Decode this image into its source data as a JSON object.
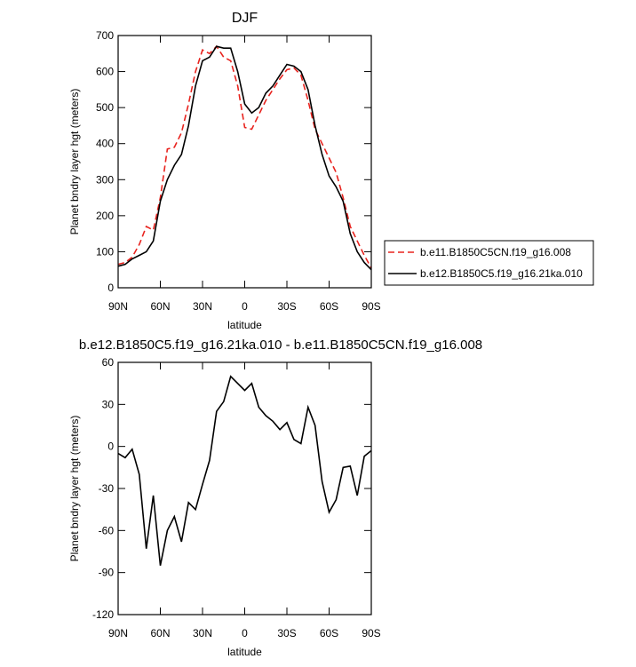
{
  "chart_data": [
    {
      "type": "line",
      "title": "DJF",
      "xlabel": "latitude",
      "ylabel": "Planet bndry layer hgt (meters)",
      "x": [
        90,
        85,
        80,
        75,
        70,
        65,
        60,
        55,
        50,
        45,
        40,
        35,
        30,
        25,
        20,
        15,
        10,
        5,
        0,
        -5,
        -10,
        -15,
        -20,
        -25,
        -30,
        -35,
        -40,
        -45,
        -50,
        -55,
        -60,
        -65,
        -70,
        -75,
        -80,
        -85,
        -90
      ],
      "series": [
        {
          "name": "b.e11.B1850C5CN.f19_g16.008",
          "color": "#e8231e",
          "dashed": true,
          "values": [
            65,
            70,
            85,
            120,
            170,
            160,
            250,
            385,
            390,
            430,
            510,
            600,
            660,
            650,
            670,
            640,
            630,
            560,
            445,
            440,
            480,
            520,
            550,
            580,
            605,
            610,
            590,
            520,
            440,
            400,
            360,
            320,
            250,
            170,
            130,
            90,
            55
          ]
        },
        {
          "name": "b.e12.B1850C5.f19_g16.21ka.010",
          "color": "#000000",
          "dashed": false,
          "values": [
            60,
            65,
            80,
            90,
            100,
            130,
            240,
            300,
            340,
            370,
            450,
            560,
            630,
            640,
            670,
            665,
            665,
            600,
            510,
            485,
            500,
            540,
            560,
            590,
            620,
            615,
            600,
            550,
            450,
            370,
            310,
            280,
            240,
            150,
            100,
            70,
            50
          ]
        }
      ],
      "xlim": [
        90,
        -90
      ],
      "xticks": [
        {
          "value": 90,
          "label": "90N"
        },
        {
          "value": 60,
          "label": "60N"
        },
        {
          "value": 30,
          "label": "30N"
        },
        0,
        {
          "value": -30,
          "label": "30S"
        },
        {
          "value": -60,
          "label": "60S"
        },
        {
          "value": -90,
          "label": "90S"
        }
      ],
      "ylim": [
        0,
        700
      ],
      "yticks": [
        0,
        100,
        200,
        300,
        400,
        500,
        600,
        700
      ],
      "legend": "outside-right"
    },
    {
      "type": "line",
      "title": "b.e12.B1850C5.f19_g16.21ka.010 - b.e11.B1850C5CN.f19_g16.008",
      "xlabel": "latitude",
      "ylabel": "Planet bndry layer hgt (meters)",
      "x": [
        90,
        85,
        80,
        75,
        70,
        65,
        60,
        55,
        50,
        45,
        40,
        35,
        30,
        25,
        20,
        15,
        10,
        5,
        0,
        -5,
        -10,
        -15,
        -20,
        -25,
        -30,
        -35,
        -40,
        -45,
        -50,
        -55,
        -60,
        -65,
        -70,
        -75,
        -80,
        -85,
        -90
      ],
      "color": "#000000",
      "values": [
        -5,
        -8,
        -2,
        -20,
        -73,
        -35,
        -85,
        -60,
        -50,
        -68,
        -40,
        -45,
        -27,
        -10,
        25,
        32,
        50,
        45,
        40,
        45,
        28,
        22,
        18,
        12,
        17,
        5,
        2,
        28,
        15,
        -25,
        -47,
        -38,
        -15,
        -14,
        -35,
        -7,
        -3
      ],
      "xlim": [
        90,
        -90
      ],
      "xticks": [
        {
          "value": 90,
          "label": "90N"
        },
        {
          "value": 60,
          "label": "60N"
        },
        {
          "value": 30,
          "label": "30N"
        },
        0,
        {
          "value": -30,
          "label": "30S"
        },
        {
          "value": -60,
          "label": "60S"
        },
        {
          "value": -90,
          "label": "90S"
        }
      ],
      "ylim": [
        -120,
        60
      ],
      "yticks": [
        -120,
        -90,
        -60,
        -30,
        0,
        30,
        60
      ]
    }
  ]
}
